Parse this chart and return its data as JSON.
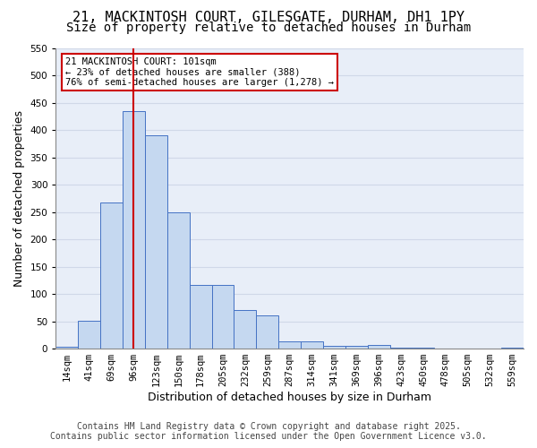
{
  "title_line1": "21, MACKINTOSH COURT, GILESGATE, DURHAM, DH1 1PY",
  "title_line2": "Size of property relative to detached houses in Durham",
  "xlabel": "Distribution of detached houses by size in Durham",
  "ylabel": "Number of detached properties",
  "categories": [
    "14sqm",
    "41sqm",
    "69sqm",
    "96sqm",
    "123sqm",
    "150sqm",
    "178sqm",
    "205sqm",
    "232sqm",
    "259sqm",
    "287sqm",
    "314sqm",
    "341sqm",
    "369sqm",
    "396sqm",
    "423sqm",
    "450sqm",
    "478sqm",
    "505sqm",
    "532sqm",
    "559sqm"
  ],
  "values": [
    3,
    51,
    268,
    435,
    390,
    250,
    116,
    116,
    70,
    61,
    14,
    13,
    5,
    5,
    7,
    1,
    1,
    0,
    0,
    0,
    2
  ],
  "bar_color": "#c5d8f0",
  "bar_edge_color": "#4472c4",
  "grid_color": "#d0d8e8",
  "background_color": "#e8eef8",
  "vline_x": 3.0,
  "vline_color": "#cc0000",
  "annotation_title": "21 MACKINTOSH COURT: 101sqm",
  "annotation_line2": "← 23% of detached houses are smaller (388)",
  "annotation_line3": "76% of semi-detached houses are larger (1,278) →",
  "annotation_box_color": "#cc0000",
  "ylim": [
    0,
    550
  ],
  "yticks": [
    0,
    50,
    100,
    150,
    200,
    250,
    300,
    350,
    400,
    450,
    500,
    550
  ],
  "footer_line1": "Contains HM Land Registry data © Crown copyright and database right 2025.",
  "footer_line2": "Contains public sector information licensed under the Open Government Licence v3.0.",
  "title_fontsize": 11,
  "subtitle_fontsize": 10,
  "axis_label_fontsize": 9,
  "tick_fontsize": 7.5,
  "annotation_fontsize": 7.5,
  "footer_fontsize": 7
}
